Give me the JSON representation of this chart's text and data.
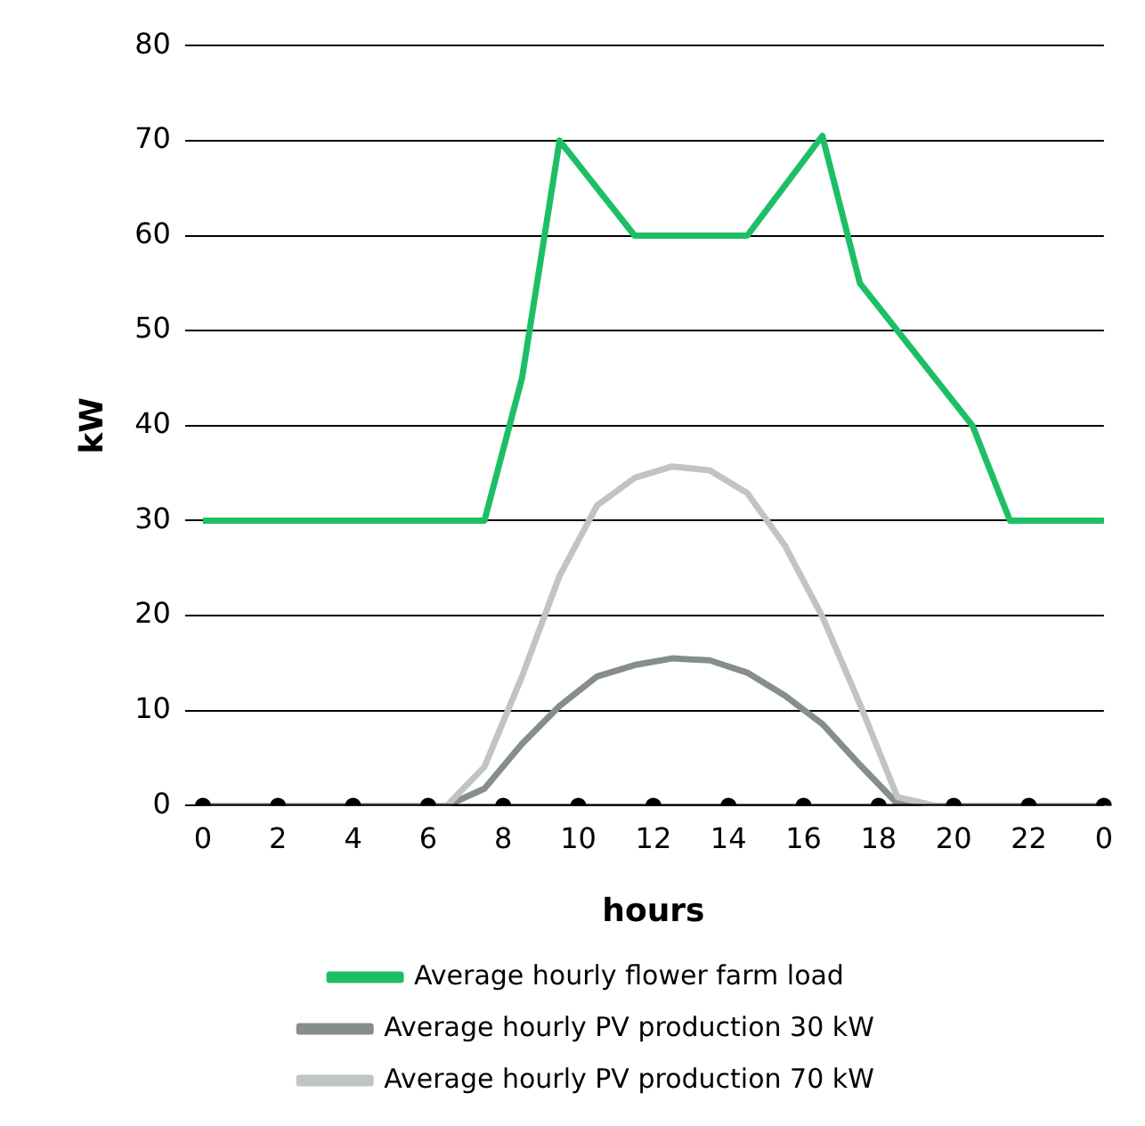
{
  "chart_data": {
    "type": "line",
    "xlabel": "hours",
    "ylabel": "kW",
    "categories": [
      "0",
      null,
      null,
      null,
      "2",
      null,
      null,
      null,
      "4",
      null,
      null,
      null,
      "6",
      null,
      null,
      null,
      "8",
      null,
      null,
      null,
      "10",
      null,
      null,
      null,
      "12",
      null,
      null,
      null,
      "14",
      null,
      null,
      null,
      "16",
      null,
      null,
      null,
      "18",
      null,
      null,
      null,
      "20",
      null,
      null,
      null,
      "22",
      null,
      null,
      null,
      "0"
    ],
    "ylim": [
      0,
      80
    ],
    "yticks": [
      0,
      10,
      20,
      30,
      40,
      50,
      60,
      70,
      80
    ],
    "grid": "y",
    "legend": "bottom",
    "line_style": "solid",
    "series": [
      {
        "name": "Average hourly flower farm load",
        "color": "#1dbf66",
        "marker": "none",
        "values": [
          30,
          null,
          null,
          null,
          null,
          null,
          null,
          null,
          null,
          null,
          null,
          null,
          null,
          null,
          null,
          30,
          null,
          45,
          null,
          70,
          null,
          null,
          null,
          60,
          null,
          null,
          null,
          null,
          null,
          60,
          null,
          null,
          null,
          70.5,
          null,
          55,
          null,
          null,
          null,
          null,
          null,
          40,
          null,
          30,
          null,
          null,
          null,
          null,
          30
        ]
      },
      {
        "name": "Average hourly PV production 30 kW",
        "color": "#858d8d",
        "marker": "none",
        "values": [
          0,
          null,
          null,
          null,
          null,
          null,
          null,
          null,
          null,
          null,
          null,
          null,
          null,
          0,
          null,
          1.8,
          null,
          6.5,
          null,
          10.5,
          null,
          13.6,
          null,
          14.8,
          null,
          15.5,
          null,
          15.3,
          null,
          14,
          null,
          11.6,
          null,
          8.6,
          null,
          4.3,
          null,
          0.2,
          null,
          0,
          null,
          null,
          null,
          null,
          null,
          null,
          null,
          null,
          0
        ]
      },
      {
        "name": "Average hourly PV production 70 kW",
        "color": "#c0c4c4",
        "marker": "none",
        "values": [
          0,
          null,
          null,
          null,
          null,
          null,
          null,
          null,
          null,
          null,
          null,
          null,
          null,
          0,
          null,
          4.1,
          null,
          13.6,
          null,
          24.2,
          null,
          31.6,
          null,
          34.5,
          null,
          35.7,
          null,
          35.3,
          null,
          32.9,
          null,
          27.4,
          null,
          19.9,
          null,
          10.7,
          null,
          0.9,
          null,
          0,
          null,
          null,
          null,
          null,
          null,
          null,
          null,
          null,
          0
        ]
      },
      {
        "color": "#000000",
        "marker": "circle",
        "values": [
          0,
          null,
          null,
          null,
          0,
          null,
          null,
          null,
          0,
          null,
          null,
          null,
          0,
          null,
          null,
          null,
          0,
          null,
          null,
          null,
          0,
          null,
          null,
          null,
          0,
          null,
          null,
          null,
          0,
          null,
          null,
          null,
          0,
          null,
          null,
          null,
          0,
          null,
          null,
          null,
          0,
          null,
          null,
          null,
          0,
          null,
          null,
          null,
          0
        ]
      }
    ]
  }
}
